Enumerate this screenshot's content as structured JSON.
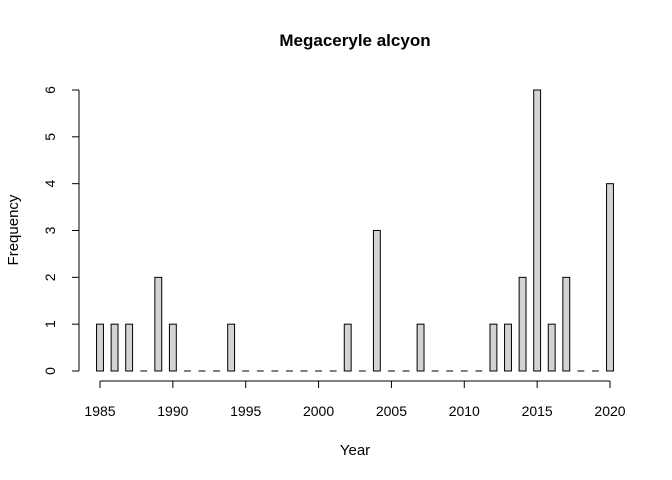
{
  "chart_data": {
    "type": "bar",
    "title": "Megaceryle alcyon",
    "xlabel": "Year",
    "ylabel": "Frequency",
    "bar_fill": "#d3d3d3",
    "bar_stroke": "#000000",
    "xlim": [
      1985,
      2020
    ],
    "ylim": [
      0,
      6
    ],
    "x_ticks": [
      1985,
      1990,
      1995,
      2000,
      2005,
      2010,
      2015,
      2020
    ],
    "y_ticks": [
      0,
      1,
      2,
      3,
      4,
      5,
      6
    ],
    "categories": [
      1985,
      1986,
      1987,
      1988,
      1989,
      1990,
      1991,
      1992,
      1993,
      1994,
      1995,
      1996,
      1997,
      1998,
      1999,
      2000,
      2001,
      2002,
      2003,
      2004,
      2005,
      2006,
      2007,
      2008,
      2009,
      2010,
      2011,
      2012,
      2013,
      2014,
      2015,
      2016,
      2017,
      2018,
      2019,
      2020
    ],
    "values": [
      1,
      1,
      1,
      0,
      2,
      1,
      0,
      0,
      0,
      1,
      0,
      0,
      0,
      0,
      0,
      0,
      0,
      1,
      0,
      3,
      0,
      0,
      1,
      0,
      0,
      0,
      0,
      1,
      1,
      2,
      6,
      1,
      2,
      0,
      0,
      4
    ],
    "grid": false,
    "legend": "none"
  }
}
